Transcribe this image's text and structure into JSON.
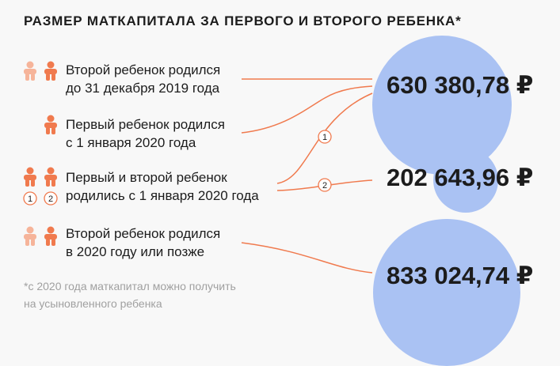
{
  "title": "РАЗМЕР МАТКАПИТАЛА ЗА ПЕРВОГО И ВТОРОГО РЕБЕНКА*",
  "cases": [
    {
      "line1": "Второй ребенок родился",
      "line2": "до 31 декабря 2019 года"
    },
    {
      "line1": "Первый ребенок родился",
      "line2": "с 1 января 2020 года"
    },
    {
      "line1": "Первый и второй ребенок",
      "line2": "родились с 1 января 2020 года"
    },
    {
      "line1": "Второй ребенок родился",
      "line2": "в 2020 году или позже"
    }
  ],
  "amounts": [
    "630 380,78 ₽",
    "202 643,96 ₽",
    "833 024,74 ₽"
  ],
  "markers": [
    "1",
    "2"
  ],
  "footnote": {
    "line1": "*с 2020 года маткапитал можно получить",
    "line2": "на усыновленного ребенка"
  },
  "colors": {
    "accent": "#f07a4e",
    "accent_light": "#f6b49a",
    "circle": "#aac2f3",
    "text": "#1c1c1c",
    "muted": "#a0a0a0"
  }
}
